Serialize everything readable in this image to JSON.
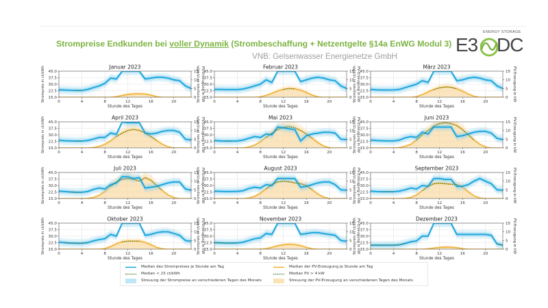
{
  "header": {
    "title_prefix": "Strompreise Endkunden bei ",
    "title_emph": "voller Dynamik",
    "title_suffix": " (Strombeschaffung + Netzentgelte §14a EnWG Modul 3)",
    "subtitle": "VNB: Gelsenwasser Energienetze GmbH",
    "logo_text_left": "E3",
    "logo_text_right": "DC",
    "logo_tagline": "ENERGY STORAGE"
  },
  "colors": {
    "title": "#7cb342",
    "price_line": "#1ba6dc",
    "price_band": "#8fd3f0",
    "pv_line": "#f0b030",
    "pv_band": "#f8d79a",
    "dotted": "#4a7a2a"
  },
  "legend": {
    "items": [
      {
        "key": "price_median",
        "label": "Median des Strompreises je Stunde am Tag"
      },
      {
        "key": "price_low",
        "label": "Median < 23 ct/kWh"
      },
      {
        "key": "price_band",
        "label": "Streuung der Strompreise an verschiedenen Tagen des Monats"
      },
      {
        "key": "pv_median",
        "label": "Median der PV-Erzeugung je Stunde am Tag"
      },
      {
        "key": "pv_high",
        "label": "Median PV > 4 kW"
      },
      {
        "key": "pv_band",
        "label": "Streuung der PV-Erzeugung an verschiedenen Tagen des Monats"
      }
    ]
  },
  "chart_data": {
    "type": "line",
    "xlabel": "Stunde des Tages",
    "ylabel_left": "Strompreis in ct/kWh",
    "ylabel_right": "PV-Erzeugung in kW",
    "x": [
      0,
      1,
      2,
      3,
      4,
      5,
      6,
      7,
      8,
      9,
      10,
      11,
      12,
      13,
      14,
      15,
      16,
      17,
      18,
      19,
      20,
      21,
      22,
      23
    ],
    "xticks": [
      0,
      4,
      8,
      12,
      16,
      20
    ],
    "xlim": [
      0,
      23
    ],
    "ylim_left": [
      15,
      45
    ],
    "yticks_left": [
      "15.0",
      "22.5",
      "30.0",
      "37.5",
      "45.0"
    ],
    "ylim_right": [
      0,
      15
    ],
    "yticks_right": [
      "0",
      "5",
      "10",
      "15"
    ],
    "price_threshold": 23,
    "pv_threshold": 4,
    "grid": true,
    "panels": [
      {
        "title": "Januar 2023",
        "price": [
          23.5,
          23.3,
          23,
          22.8,
          22.8,
          24,
          26,
          28,
          31,
          37,
          36,
          45,
          45,
          45,
          45,
          36,
          37,
          38,
          38,
          37,
          35,
          34,
          28,
          25
        ],
        "pv": [
          0,
          0,
          0,
          0,
          0,
          0,
          0,
          0,
          0,
          0,
          0.3,
          1,
          1.6,
          1.9,
          2,
          1.8,
          1.2,
          0.3,
          0,
          0,
          0,
          0,
          0,
          0
        ]
      },
      {
        "title": "Februar 2023",
        "price": [
          24,
          24,
          23.8,
          23.8,
          23.8,
          24.5,
          26,
          28,
          30,
          35,
          32,
          45,
          45,
          45,
          45,
          33,
          35,
          37,
          38,
          37,
          35,
          34,
          28,
          25
        ],
        "pv": [
          0,
          0,
          0,
          0,
          0,
          0,
          0,
          0,
          0.2,
          1,
          2.2,
          3.5,
          4.5,
          5,
          4.8,
          4,
          2.7,
          1.2,
          0.2,
          0,
          0,
          0,
          0,
          0
        ]
      },
      {
        "title": "März 2023",
        "price": [
          24,
          23.5,
          23.3,
          23.3,
          23.4,
          24,
          26,
          28,
          30,
          34,
          32,
          45,
          45,
          45,
          45,
          34,
          35,
          37,
          38,
          37,
          35,
          34,
          28,
          25
        ],
        "pv": [
          0,
          0,
          0,
          0,
          0,
          0,
          0,
          0,
          0.3,
          1.5,
          3,
          4.4,
          5.4,
          5.9,
          5.7,
          4.8,
          3.4,
          1.8,
          0.5,
          0,
          0,
          0,
          0,
          0
        ]
      },
      {
        "title": "April 2023",
        "price": [
          23.8,
          23.2,
          23,
          22.8,
          22.8,
          23.5,
          25,
          27,
          27,
          32,
          30.5,
          45,
          44,
          44,
          44,
          32,
          31,
          32,
          34,
          35,
          35,
          33,
          25,
          24
        ],
        "pv": [
          0,
          0,
          0,
          0,
          0,
          0,
          0.2,
          0.8,
          2,
          4,
          6.5,
          8.5,
          10,
          10.6,
          10,
          8.5,
          6.5,
          4.2,
          2,
          0.6,
          0,
          0,
          0,
          0
        ]
      },
      {
        "title": "Mai 2023",
        "price": [
          23.5,
          23,
          22.8,
          22.8,
          23,
          24,
          26,
          28,
          27,
          31,
          30,
          39,
          38,
          37,
          36,
          23,
          29,
          31,
          32,
          33,
          33,
          32,
          25,
          24.5
        ],
        "pv": [
          0,
          0,
          0,
          0,
          0,
          0,
          0.5,
          1.5,
          3.5,
          6,
          8.5,
          10.5,
          11.8,
          12.2,
          11.5,
          10,
          8,
          5.5,
          3,
          1,
          0.1,
          0,
          0,
          0
        ]
      },
      {
        "title": "Juni 2023",
        "price": [
          24,
          23.5,
          23.2,
          23,
          23,
          24,
          26.5,
          28,
          27,
          33,
          31,
          39,
          39,
          39,
          39,
          28,
          29,
          31,
          33,
          34,
          34,
          32,
          26,
          24.5
        ],
        "pv": [
          0,
          0,
          0,
          0,
          0,
          0.2,
          0.8,
          2,
          4.5,
          7.5,
          10,
          12.5,
          14,
          14.5,
          14,
          12.8,
          10.5,
          7.5,
          4.5,
          2,
          0.5,
          0,
          0,
          0
        ]
      },
      {
        "title": "Juli 2023",
        "price": [
          23.5,
          23,
          22.5,
          22.2,
          22.2,
          23,
          25.5,
          27,
          26,
          31,
          33,
          40,
          40,
          38,
          39,
          27,
          28,
          29,
          31,
          33,
          34,
          34,
          26,
          24.5
        ],
        "pv": [
          0,
          0,
          0,
          0,
          0,
          0.1,
          0.6,
          1.8,
          4,
          7,
          9.5,
          11,
          11.5,
          11,
          10,
          12,
          10.5,
          7.5,
          4.5,
          2,
          0.5,
          0,
          0,
          0
        ]
      },
      {
        "title": "August 2023",
        "price": [
          23.5,
          23.2,
          23,
          23,
          23.2,
          24,
          26.5,
          28,
          27,
          31,
          30,
          38,
          38,
          38,
          38,
          28,
          29,
          31,
          33,
          34,
          34,
          31,
          25,
          24.5
        ],
        "pv": [
          0,
          0,
          0,
          0,
          0,
          0,
          0.3,
          1.2,
          3,
          5.5,
          8,
          9.5,
          10,
          9.6,
          9,
          8.5,
          7.5,
          5,
          2.5,
          0.8,
          0,
          0,
          0,
          0
        ]
      },
      {
        "title": "September 2023",
        "price": [
          23.5,
          23,
          22.8,
          22.8,
          22.8,
          23.5,
          25,
          27,
          26,
          30,
          29,
          38,
          38,
          37,
          37,
          29,
          29,
          31,
          35,
          38,
          35,
          32,
          25,
          24.5
        ],
        "pv": [
          0,
          0,
          0,
          0,
          0,
          0,
          0.1,
          0.6,
          2,
          4.5,
          7,
          8.5,
          8.8,
          8.5,
          8.2,
          8,
          6.5,
          3.8,
          1.5,
          0.3,
          0,
          0,
          0,
          0
        ]
      },
      {
        "title": "Oktober 2023",
        "price": [
          23,
          22.5,
          22,
          21.8,
          21.8,
          22.5,
          24.5,
          26,
          27,
          32,
          30,
          45,
          45,
          45,
          45,
          31,
          32,
          34,
          35,
          35,
          33,
          31,
          25,
          24
        ],
        "pv": [
          0,
          0,
          0,
          0,
          0,
          0,
          0,
          0,
          0.3,
          1.5,
          3,
          4.2,
          4.6,
          4.6,
          4.6,
          3.8,
          2.5,
          1,
          0.2,
          0,
          0,
          0,
          0,
          0
        ]
      },
      {
        "title": "November 2023",
        "price": [
          22.5,
          22.3,
          22,
          22,
          22.2,
          23,
          25,
          27,
          28,
          33,
          32,
          45,
          45,
          45,
          45,
          32,
          33,
          34,
          34,
          33,
          32,
          31,
          25,
          24
        ],
        "pv": [
          0,
          0,
          0,
          0,
          0,
          0,
          0,
          0,
          0,
          0.3,
          1,
          1.9,
          2.5,
          2.8,
          2.6,
          2,
          1,
          0.2,
          0,
          0,
          0,
          0,
          0,
          0
        ]
      },
      {
        "title": "Dezember 2023",
        "price": [
          19.5,
          19.5,
          19.5,
          19.5,
          19.5,
          20,
          21.5,
          23.5,
          24.5,
          30,
          30,
          45,
          45,
          45,
          45,
          32,
          32,
          32,
          32,
          32,
          32,
          31,
          21,
          19.5
        ],
        "pv": [
          0,
          0,
          0,
          0,
          0,
          0,
          0,
          0,
          0,
          0,
          0.2,
          0.6,
          1,
          1.2,
          1.1,
          0.8,
          0.3,
          0,
          0,
          0,
          0,
          0,
          0,
          0
        ]
      }
    ]
  }
}
